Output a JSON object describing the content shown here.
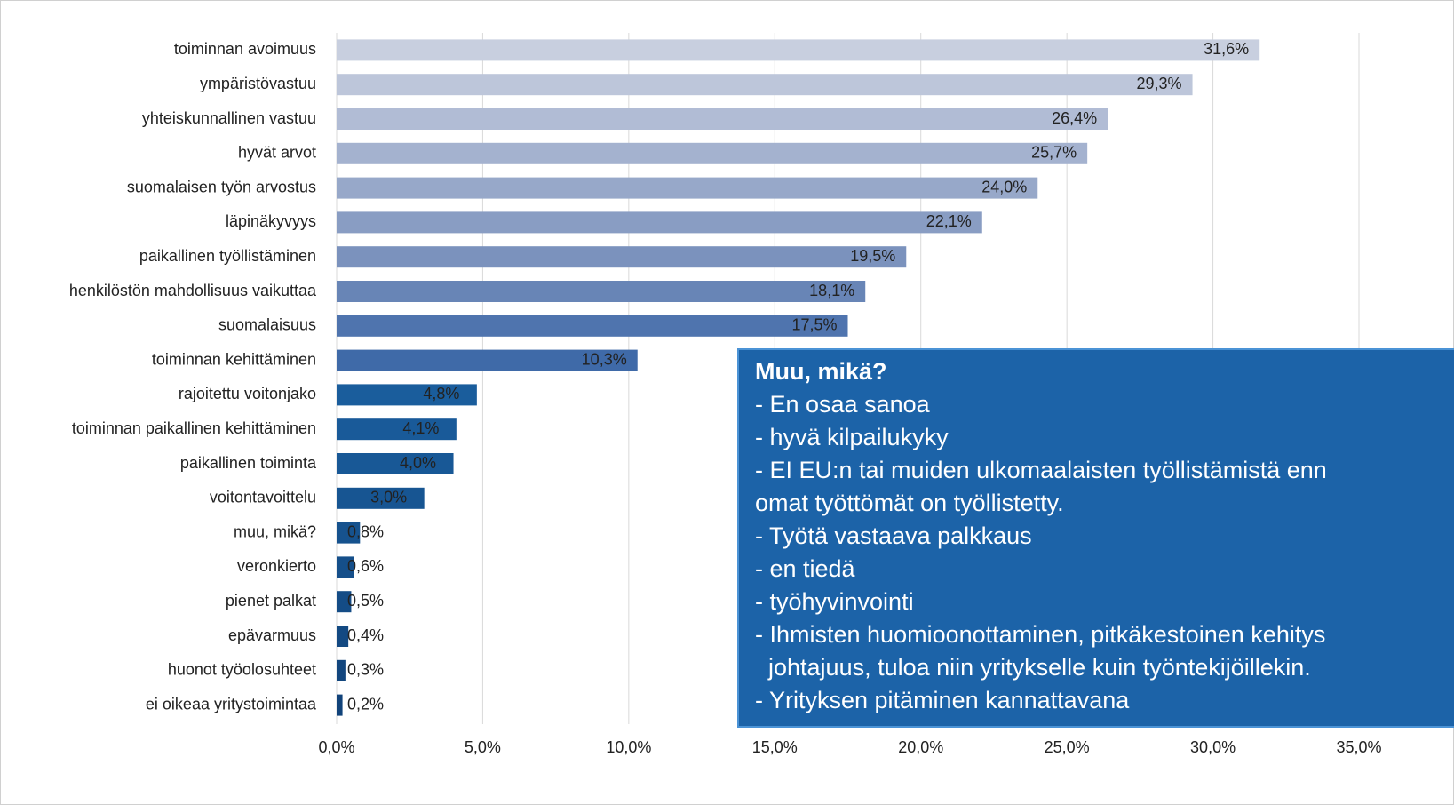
{
  "chart_data": {
    "type": "barh",
    "categories": [
      "toiminnan avoimuus",
      "ympäristövastuu",
      "yhteiskunnallinen vastuu",
      "hyvät arvot",
      "suomalaisen työn arvostus",
      "läpinäkyvyys",
      "paikallinen työllistäminen",
      "henkilöstön mahdollisuus vaikuttaa",
      "suomalaisuus",
      "toiminnan kehittäminen",
      "rajoitettu voitonjako",
      "toiminnan paikallinen kehittäminen",
      "paikallinen toiminta",
      "voitontavoittelu",
      "muu, mikä?",
      "veronkierto",
      "pienet palkat",
      "epävarmuus",
      "huonot työolosuhteet",
      "ei oikeaa yritystoimintaa"
    ],
    "values": [
      31.6,
      29.3,
      26.4,
      25.7,
      24.0,
      22.1,
      19.5,
      18.1,
      17.5,
      10.3,
      4.8,
      4.1,
      4.0,
      3.0,
      0.8,
      0.6,
      0.5,
      0.4,
      0.3,
      0.2
    ],
    "value_labels": [
      "31,6%",
      "29,3%",
      "26,4%",
      "25,7%",
      "24,0%",
      "22,1%",
      "19,5%",
      "18,1%",
      "17,5%",
      "10,3%",
      "4,8%",
      "4,1%",
      "4,0%",
      "3,0%",
      "0,8%",
      "0,6%",
      "0,5%",
      "0,4%",
      "0,3%",
      "0,2%"
    ],
    "colors": [
      "#c8cfdf",
      "#bdc6da",
      "#b1bcd5",
      "#a4b2cf",
      "#97a8c9",
      "#899dc3",
      "#7b92bd",
      "#6885b6",
      "#4f74ae",
      "#3f6aa8",
      "#1a5d9c",
      "#195a99",
      "#185896",
      "#175592",
      "#16528e",
      "#154f8a",
      "#144c86",
      "#134982",
      "#12467e",
      "#11437a"
    ],
    "xlim": [
      0,
      35
    ],
    "xticks": [
      {
        "value": 0,
        "label": "0,0%"
      },
      {
        "value": 5,
        "label": "5,0%"
      },
      {
        "value": 10,
        "label": "10,0%"
      },
      {
        "value": 15,
        "label": "15,0%"
      },
      {
        "value": 20,
        "label": "20,0%"
      },
      {
        "value": 25,
        "label": "25,0%"
      },
      {
        "value": 30,
        "label": "30,0%"
      },
      {
        "value": 35,
        "label": "35,0%"
      }
    ],
    "grid": true,
    "annotation": {
      "title": "Muu, mikä?",
      "lines": [
        "- En osaa sanoa",
        "- hyvä kilpailukyky",
        "- EI EU:n tai muiden ulkomaalaisten työllistämistä enn",
        "omat työttömät on työllistetty.",
        "- Työtä vastaava palkkaus",
        "- en tiedä",
        "- työhyvinvointi",
        "- Ihmisten huomioonottaminen, pitkäkestoinen kehitys",
        "  johtajuus, tuloa niin yritykselle kuin työntekijöillekin.",
        "- Yrityksen pitäminen kannattavana"
      ]
    }
  }
}
